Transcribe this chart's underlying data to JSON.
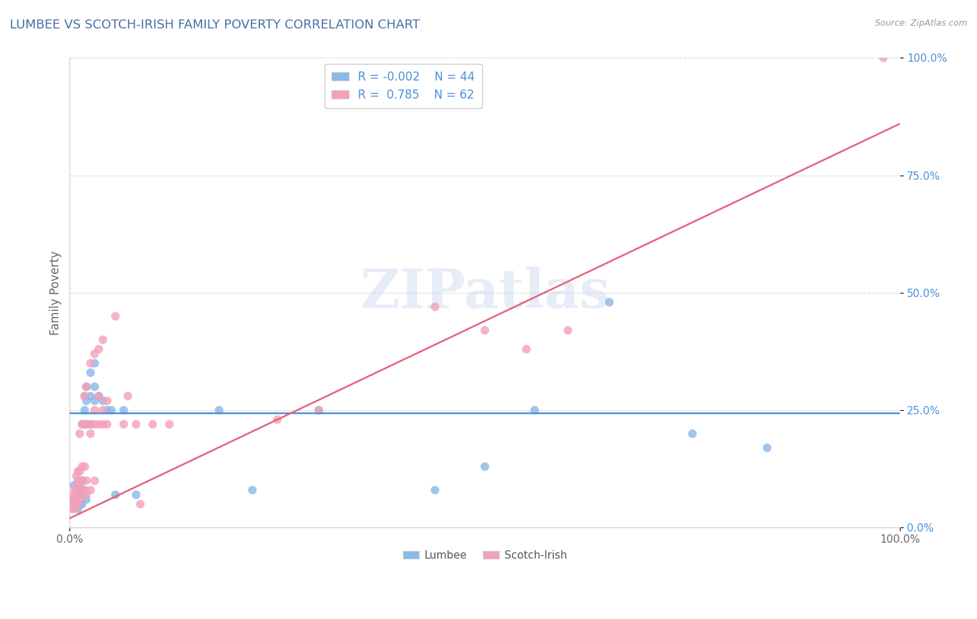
{
  "title": "LUMBEE VS SCOTCH-IRISH FAMILY POVERTY CORRELATION CHART",
  "source": "Source: ZipAtlas.com",
  "ylabel": "Family Poverty",
  "xlim": [
    0.0,
    1.0
  ],
  "ylim": [
    0.0,
    1.0
  ],
  "ytick_values": [
    0.0,
    0.25,
    0.5,
    0.75,
    1.0
  ],
  "ytick_labels": [
    "0.0%",
    "25.0%",
    "50.0%",
    "75.0%",
    "100.0%"
  ],
  "xtick_values": [
    0.0,
    1.0
  ],
  "xtick_labels": [
    "0.0%",
    "100.0%"
  ],
  "watermark": "ZIPatlas",
  "lumbee_R": -0.002,
  "lumbee_N": 44,
  "scotchirish_R": 0.785,
  "scotchirish_N": 62,
  "lumbee_color": "#8ab8e8",
  "scotchirish_color": "#f4a0b8",
  "lumbee_line_color": "#4a90d9",
  "scotchirish_line_color": "#e8607a",
  "grid_color": "#d0d8e8",
  "title_color": "#4a6fa5",
  "tick_color": "#4a90d9",
  "lumbee_line_y0": 0.245,
  "lumbee_line_y1": 0.245,
  "scotchirish_line_y0": 0.02,
  "scotchirish_line_y1": 0.86,
  "lumbee_scatter": [
    [
      0.005,
      0.06
    ],
    [
      0.005,
      0.09
    ],
    [
      0.007,
      0.05
    ],
    [
      0.008,
      0.07
    ],
    [
      0.01,
      0.04
    ],
    [
      0.01,
      0.07
    ],
    [
      0.01,
      0.08
    ],
    [
      0.01,
      0.1
    ],
    [
      0.012,
      0.05
    ],
    [
      0.012,
      0.07
    ],
    [
      0.012,
      0.09
    ],
    [
      0.015,
      0.05
    ],
    [
      0.015,
      0.07
    ],
    [
      0.015,
      0.1
    ],
    [
      0.015,
      0.22
    ],
    [
      0.018,
      0.08
    ],
    [
      0.018,
      0.25
    ],
    [
      0.018,
      0.28
    ],
    [
      0.02,
      0.06
    ],
    [
      0.02,
      0.22
    ],
    [
      0.02,
      0.27
    ],
    [
      0.02,
      0.3
    ],
    [
      0.025,
      0.22
    ],
    [
      0.025,
      0.28
    ],
    [
      0.025,
      0.33
    ],
    [
      0.03,
      0.27
    ],
    [
      0.03,
      0.3
    ],
    [
      0.03,
      0.35
    ],
    [
      0.035,
      0.28
    ],
    [
      0.04,
      0.27
    ],
    [
      0.045,
      0.25
    ],
    [
      0.05,
      0.25
    ],
    [
      0.055,
      0.07
    ],
    [
      0.065,
      0.25
    ],
    [
      0.08,
      0.07
    ],
    [
      0.18,
      0.25
    ],
    [
      0.22,
      0.08
    ],
    [
      0.3,
      0.25
    ],
    [
      0.44,
      0.08
    ],
    [
      0.5,
      0.13
    ],
    [
      0.56,
      0.25
    ],
    [
      0.65,
      0.48
    ],
    [
      0.75,
      0.2
    ],
    [
      0.84,
      0.17
    ]
  ],
  "scotchirish_scatter": [
    [
      0.003,
      0.04
    ],
    [
      0.004,
      0.06
    ],
    [
      0.005,
      0.05
    ],
    [
      0.005,
      0.07
    ],
    [
      0.006,
      0.04
    ],
    [
      0.006,
      0.06
    ],
    [
      0.006,
      0.08
    ],
    [
      0.007,
      0.05
    ],
    [
      0.008,
      0.05
    ],
    [
      0.008,
      0.07
    ],
    [
      0.008,
      0.09
    ],
    [
      0.008,
      0.11
    ],
    [
      0.01,
      0.05
    ],
    [
      0.01,
      0.07
    ],
    [
      0.01,
      0.09
    ],
    [
      0.01,
      0.12
    ],
    [
      0.012,
      0.06
    ],
    [
      0.012,
      0.09
    ],
    [
      0.012,
      0.12
    ],
    [
      0.012,
      0.2
    ],
    [
      0.015,
      0.07
    ],
    [
      0.015,
      0.1
    ],
    [
      0.015,
      0.13
    ],
    [
      0.015,
      0.22
    ],
    [
      0.018,
      0.08
    ],
    [
      0.018,
      0.13
    ],
    [
      0.018,
      0.22
    ],
    [
      0.018,
      0.28
    ],
    [
      0.02,
      0.07
    ],
    [
      0.02,
      0.1
    ],
    [
      0.02,
      0.22
    ],
    [
      0.02,
      0.3
    ],
    [
      0.025,
      0.08
    ],
    [
      0.025,
      0.2
    ],
    [
      0.025,
      0.22
    ],
    [
      0.025,
      0.35
    ],
    [
      0.03,
      0.1
    ],
    [
      0.03,
      0.22
    ],
    [
      0.03,
      0.25
    ],
    [
      0.03,
      0.37
    ],
    [
      0.035,
      0.22
    ],
    [
      0.035,
      0.28
    ],
    [
      0.035,
      0.38
    ],
    [
      0.04,
      0.22
    ],
    [
      0.04,
      0.25
    ],
    [
      0.04,
      0.4
    ],
    [
      0.045,
      0.22
    ],
    [
      0.045,
      0.27
    ],
    [
      0.055,
      0.45
    ],
    [
      0.065,
      0.22
    ],
    [
      0.07,
      0.28
    ],
    [
      0.08,
      0.22
    ],
    [
      0.085,
      0.05
    ],
    [
      0.1,
      0.22
    ],
    [
      0.12,
      0.22
    ],
    [
      0.25,
      0.23
    ],
    [
      0.3,
      0.25
    ],
    [
      0.44,
      0.47
    ],
    [
      0.5,
      0.42
    ],
    [
      0.55,
      0.38
    ],
    [
      0.6,
      0.42
    ],
    [
      0.98,
      1.0
    ]
  ]
}
